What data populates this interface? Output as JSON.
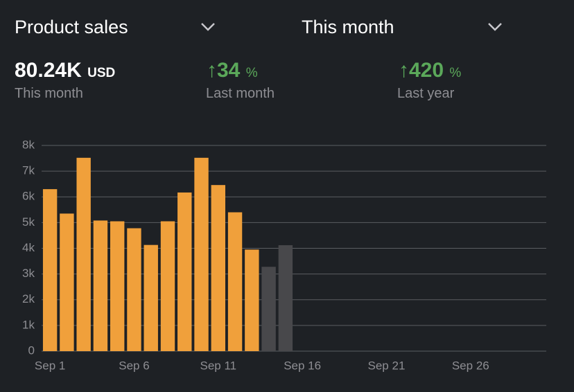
{
  "header": {
    "metric": "Product sales",
    "period": "This month"
  },
  "stats": [
    {
      "value": "80.24K",
      "unit": "USD",
      "label": "This month"
    },
    {
      "value": "34",
      "unit": "%",
      "label": "Last month"
    },
    {
      "value": "420",
      "unit": "%",
      "label": "Last year"
    }
  ],
  "chart_data": {
    "type": "bar",
    "categories": [
      "Sep 1",
      null,
      null,
      null,
      null,
      "Sep 6",
      null,
      null,
      null,
      null,
      "Sep 11",
      null,
      null,
      null,
      null,
      "Sep 16",
      null,
      null,
      null,
      null,
      "Sep 21",
      null,
      null,
      null,
      null,
      "Sep 26",
      null,
      null,
      null,
      null
    ],
    "values": [
      6300,
      5350,
      7520,
      5080,
      5050,
      4780,
      4130,
      5050,
      6170,
      7520,
      6460,
      5400,
      3950,
      3280,
      4120,
      null,
      null,
      null,
      null,
      null,
      null,
      null,
      null,
      null,
      null,
      null,
      null,
      null,
      null,
      null
    ],
    "colors": [
      "#f0a03b",
      "#f0a03b",
      "#f0a03b",
      "#f0a03b",
      "#f0a03b",
      "#f0a03b",
      "#f0a03b",
      "#f0a03b",
      "#f0a03b",
      "#f0a03b",
      "#f0a03b",
      "#f0a03b",
      "#f0a03b",
      "#48484b",
      "#48484b",
      null,
      null,
      null,
      null,
      null,
      null,
      null,
      null,
      null,
      null,
      null,
      null,
      null,
      null,
      null
    ],
    "ylim": [
      0,
      8000
    ],
    "yticks": [
      0,
      {
        "value": 1000,
        "label": "1k"
      },
      {
        "value": 2000,
        "label": "2k"
      },
      {
        "value": 3000,
        "label": "3k"
      },
      {
        "value": 4000,
        "label": "4k"
      },
      {
        "value": 5000,
        "label": "5k"
      },
      {
        "value": 6000,
        "label": "6k"
      },
      {
        "value": 7000,
        "label": "7k"
      },
      {
        "value": 8000,
        "label": "8k"
      }
    ],
    "grid": true
  }
}
